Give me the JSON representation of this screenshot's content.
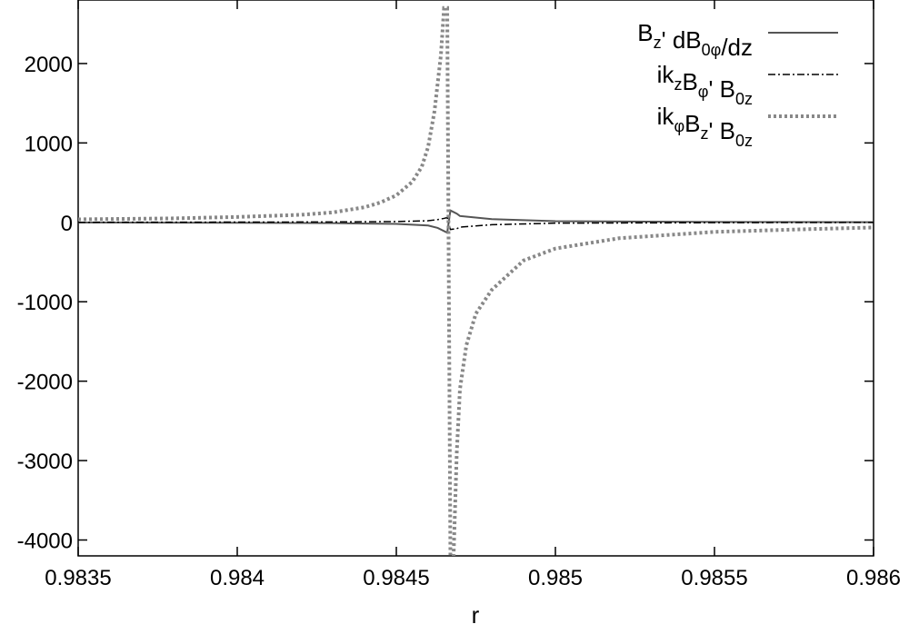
{
  "chart_data": {
    "type": "line",
    "xlabel": "r",
    "xlim": [
      0.9835,
      0.986
    ],
    "ylim": [
      -4200,
      2800
    ],
    "xticks": [
      0.9835,
      0.984,
      0.9845,
      0.985,
      0.9855,
      0.986
    ],
    "xtick_labels": [
      "0.9835",
      "0.984",
      "0.9845",
      "0.985",
      "0.9855",
      "0.986"
    ],
    "yticks": [
      -4000,
      -3000,
      -2000,
      -1000,
      0,
      1000,
      2000
    ],
    "ytick_labels": [
      "-4000",
      "-3000",
      "-2000",
      "-1000",
      "0",
      "1000",
      "2000"
    ],
    "grid": false,
    "legend_position": "top-right",
    "singularity_r": 0.98466,
    "series": [
      {
        "name": "Bz' dB0φ/dz",
        "legend": {
          "base1": "B",
          "sub1": "z",
          "mid": "' dB",
          "sub2": "0φ",
          "tail": "/dz"
        },
        "style": "solid",
        "color": "#555555",
        "x": [
          0.9835,
          0.984,
          0.9843,
          0.9845,
          0.9846,
          0.98463,
          0.98465,
          0.98466,
          0.98467,
          0.98469,
          0.9847,
          0.9848,
          0.985,
          0.9855,
          0.986
        ],
        "y": [
          -2,
          -5,
          -10,
          -20,
          -40,
          -70,
          -110,
          -130,
          150,
          110,
          80,
          40,
          15,
          5,
          2
        ]
      },
      {
        "name": "ikzBφ' B0z",
        "legend": {
          "base1": "ik",
          "sub1": "z",
          "mid": "B",
          "sub2": "φ",
          "tail": "' B",
          "sub3": "0z"
        },
        "style": "dashdot",
        "color": "#000000",
        "x": [
          0.9835,
          0.984,
          0.9843,
          0.9845,
          0.9846,
          0.98463,
          0.98465,
          0.98466,
          0.98467,
          0.98469,
          0.9847,
          0.9848,
          0.985,
          0.9855,
          0.986
        ],
        "y": [
          1,
          3,
          5,
          10,
          20,
          35,
          50,
          60,
          -90,
          -80,
          -60,
          -30,
          -10,
          -4,
          -1
        ]
      },
      {
        "name": "ikφBz' B0z",
        "legend": {
          "base1": "ik",
          "sub1": "φ",
          "mid": "B",
          "sub2": "z",
          "tail": "' B",
          "sub3": "0z"
        },
        "style": "dotted",
        "color": "#888888",
        "x": [
          0.9835,
          0.9838,
          0.984,
          0.9842,
          0.9843,
          0.9844,
          0.98445,
          0.9845,
          0.98455,
          0.98458,
          0.9846,
          0.98462,
          0.98464,
          0.98465,
          0.98466,
          0.98467,
          0.98468,
          0.98469,
          0.9847,
          0.98472,
          0.98475,
          0.9848,
          0.9849,
          0.985,
          0.9852,
          0.9855,
          0.9858,
          0.986
        ],
        "y": [
          38,
          50,
          68,
          95,
          125,
          190,
          250,
          340,
          510,
          700,
          950,
          1400,
          2100,
          2700,
          2700,
          -4200,
          -4200,
          -2900,
          -2100,
          -1550,
          -1150,
          -850,
          -480,
          -330,
          -200,
          -120,
          -85,
          -65
        ]
      }
    ]
  }
}
